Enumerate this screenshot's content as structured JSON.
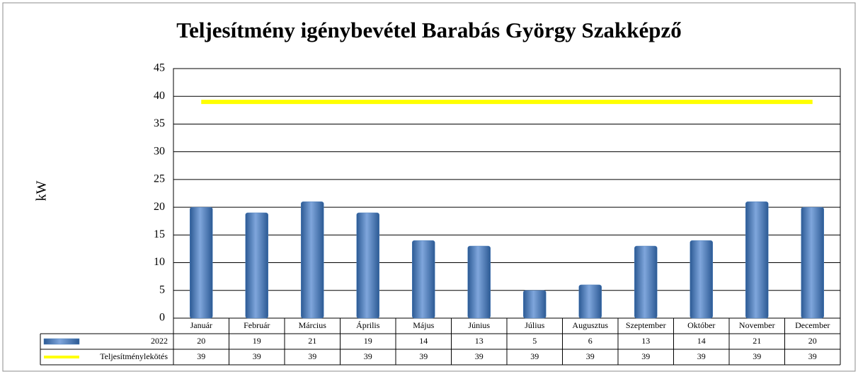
{
  "chart_data": {
    "type": "bar",
    "title": "Teljesítmény igénybevétel Barabás György Szakképző",
    "y_label": "kW",
    "categories": [
      "Január",
      "Február",
      "Március",
      "Április",
      "Május",
      "Június",
      "Július",
      "Augusztus",
      "Szeptember",
      "Október",
      "November",
      "December"
    ],
    "series": [
      {
        "name": "2022",
        "color": "#4f81bd",
        "values": [
          20,
          19,
          21,
          19,
          14,
          13,
          5,
          6,
          13,
          14,
          21,
          20
        ]
      },
      {
        "name": "Teljesítménylekötés",
        "color": "#ffff00",
        "type": "line",
        "values": [
          39,
          39,
          39,
          39,
          39,
          39,
          39,
          39,
          39,
          39,
          39,
          39
        ]
      }
    ],
    "ylim": [
      0,
      45
    ],
    "yticks": [
      0,
      5,
      10,
      15,
      20,
      25,
      30,
      35,
      40,
      45
    ],
    "grid": true,
    "data_table": true
  }
}
